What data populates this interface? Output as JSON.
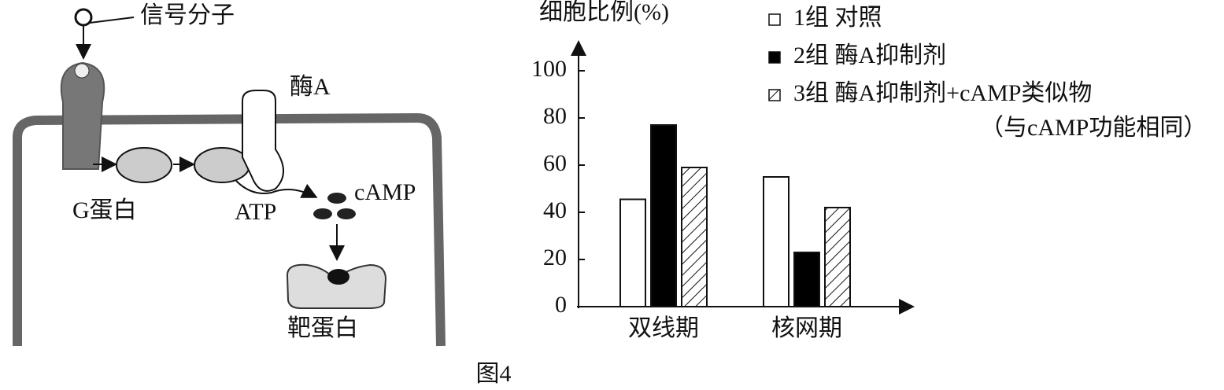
{
  "diagram": {
    "signal": "信号分子",
    "enzyme": "酶A",
    "g_protein": "G蛋白",
    "atp": "ATP",
    "camp": "cAMP",
    "target": "靶蛋白"
  },
  "chart_data": {
    "type": "bar",
    "y_label": "细胞比例(%)",
    "categories": [
      "双线期",
      "核网期"
    ],
    "series": [
      {
        "name": "1组 对照",
        "color": "#ffffff",
        "values": [
          45.5,
          55
        ]
      },
      {
        "name": "2组 酶A抑制剂",
        "color": "#000000",
        "values": [
          77,
          23
        ]
      },
      {
        "name": "3组 酶A抑制剂+cAMP类似物",
        "color": "#ffffff",
        "pattern": "hatch",
        "values": [
          59,
          42
        ]
      }
    ],
    "legend_note": "（与cAMP功能相同）",
    "ylim": [
      0,
      110
    ],
    "yticks": [
      0,
      20,
      40,
      60,
      80,
      100
    ]
  },
  "caption": "图4"
}
